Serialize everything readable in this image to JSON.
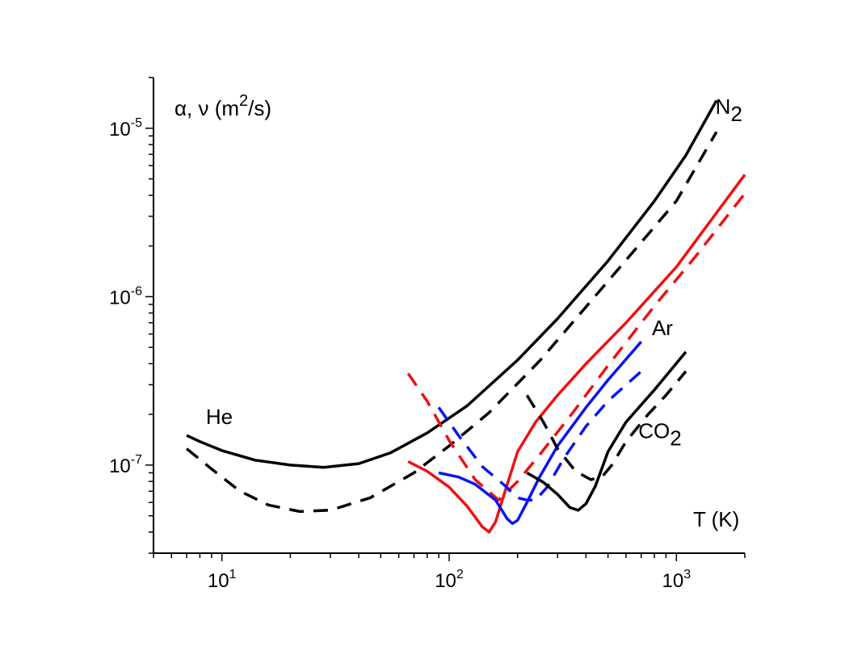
{
  "chart_data": {
    "type": "line",
    "title": "",
    "x_scale": "log",
    "y_scale": "log",
    "xlim": [
      5,
      2000
    ],
    "ylim": [
      3e-08,
      2e-05
    ],
    "grid": false,
    "legend": "none",
    "x_ticks": [
      {
        "value": 10,
        "base": "10",
        "exp": "1"
      },
      {
        "value": 100,
        "base": "10",
        "exp": "2"
      },
      {
        "value": 1000,
        "base": "10",
        "exp": "3"
      }
    ],
    "y_ticks": [
      {
        "value": 1e-07,
        "base": "10",
        "exp": "-7"
      },
      {
        "value": 1e-06,
        "base": "10",
        "exp": "-6"
      },
      {
        "value": 1e-05,
        "base": "10",
        "exp": "-5"
      }
    ],
    "ylabel": {
      "main": "α, ν (m",
      "sup": "2",
      "rest": "/s)"
    },
    "xlabel": "T (K)",
    "annotations": [
      {
        "gas": "He",
        "base": "He",
        "sub": "",
        "at": [
          8.5,
          1.75e-07
        ]
      },
      {
        "gas": "N2",
        "base": "N",
        "sub": "2",
        "at": [
          1950,
          1.22e-05
        ]
      },
      {
        "gas": "Ar",
        "base": "Ar",
        "sub": "",
        "at": [
          780,
          5.9e-07
        ]
      },
      {
        "gas": "CO2",
        "base": "CO",
        "sub": "2",
        "at": [
          680,
          1.45e-07
        ]
      }
    ],
    "series": [
      {
        "gas": "He",
        "quantity": "α",
        "color": "#000000",
        "dash": "solid",
        "x": [
          7,
          8,
          10,
          14,
          20,
          28,
          40,
          55,
          80,
          120,
          200,
          300,
          500,
          800,
          1100,
          1500
        ],
        "y": [
          1.5e-07,
          1.38e-07,
          1.22e-07,
          1.07e-07,
          1e-07,
          9.7e-08,
          1.02e-07,
          1.18e-07,
          1.55e-07,
          2.25e-07,
          4.2e-07,
          7.4e-07,
          1.63e-06,
          3.7e-06,
          6.9e-06,
          1.46e-05
        ]
      },
      {
        "gas": "He",
        "quantity": "ν",
        "color": "#000000",
        "dash": "dashed",
        "x": [
          7,
          9,
          12,
          16,
          22,
          30,
          45,
          70,
          100,
          150,
          250,
          400,
          700,
          1000,
          1500
        ],
        "y": [
          1.25e-07,
          9.5e-08,
          7e-08,
          5.8e-08,
          5.3e-08,
          5.4e-08,
          6.4e-08,
          9e-08,
          1.3e-07,
          2.05e-07,
          4.15e-07,
          8.7e-07,
          2.1e-06,
          3.7e-06,
          9.5e-06
        ]
      },
      {
        "gas": "N2",
        "quantity": "α",
        "color": "#ee1111",
        "dash": "solid",
        "x": [
          66,
          80,
          100,
          120,
          140,
          150,
          160,
          175,
          200,
          240,
          300,
          400,
          600,
          1000,
          2000
        ],
        "y": [
          1.05e-07,
          9.2e-08,
          7.4e-08,
          5.7e-08,
          4.3e-08,
          4e-08,
          4.6e-08,
          6.8e-08,
          1.2e-07,
          1.8e-07,
          2.6e-07,
          4e-07,
          7e-07,
          1.5e-06,
          5.3e-06
        ]
      },
      {
        "gas": "N2",
        "quantity": "ν",
        "color": "#ee1111",
        "dash": "dashed",
        "x": [
          66,
          80,
          100,
          130,
          165,
          200,
          250,
          350,
          500,
          800,
          1200,
          2000
        ],
        "y": [
          3.5e-07,
          2.4e-07,
          1.4e-07,
          8.2e-08,
          6.2e-08,
          8e-08,
          1.15e-07,
          2.05e-07,
          3.9e-07,
          8.8e-07,
          1.7e-06,
          4.1e-06
        ]
      },
      {
        "gas": "Ar",
        "quantity": "α",
        "color": "#0a14ee",
        "dash": "solid",
        "x": [
          90,
          110,
          130,
          160,
          180,
          190,
          200,
          220,
          250,
          300,
          400,
          500,
          700
        ],
        "y": [
          9e-08,
          8.5e-08,
          7.7e-08,
          6.2e-08,
          4.8e-08,
          4.5e-08,
          4.7e-08,
          6e-08,
          8.5e-08,
          1.3e-07,
          2.2e-07,
          3.2e-07,
          5.4e-07
        ]
      },
      {
        "gas": "Ar",
        "quantity": "ν",
        "color": "#0a14ee",
        "dash": "dashed",
        "x": [
          90,
          110,
          140,
          175,
          200,
          220,
          240,
          270,
          320,
          400,
          500,
          700
        ],
        "y": [
          2.2e-07,
          1.5e-07,
          9.8e-08,
          7.6e-08,
          6.4e-08,
          6.2e-08,
          6.2e-08,
          7.4e-08,
          1.1e-07,
          1.7e-07,
          2.4e-07,
          3.6e-07
        ]
      },
      {
        "gas": "CO2",
        "quantity": "α",
        "color": "#000000",
        "dash": "solid",
        "x": [
          220,
          260,
          300,
          340,
          370,
          400,
          440,
          500,
          600,
          800,
          1100
        ],
        "y": [
          9e-08,
          7.9e-08,
          6.7e-08,
          5.6e-08,
          5.4e-08,
          5.9e-08,
          7.5e-08,
          1.2e-07,
          1.8e-07,
          2.8e-07,
          4.7e-07
        ]
      },
      {
        "gas": "CO2",
        "quantity": "ν",
        "color": "#000000",
        "dash": "dashed",
        "x": [
          220,
          260,
          300,
          360,
          420,
          470,
          520,
          600,
          750,
          900,
          1100
        ],
        "y": [
          2.6e-07,
          1.8e-07,
          1.25e-07,
          9.2e-08,
          8.2e-08,
          8.5e-08,
          1e-07,
          1.38e-07,
          2e-07,
          2.6e-07,
          3.6e-07
        ]
      }
    ]
  }
}
